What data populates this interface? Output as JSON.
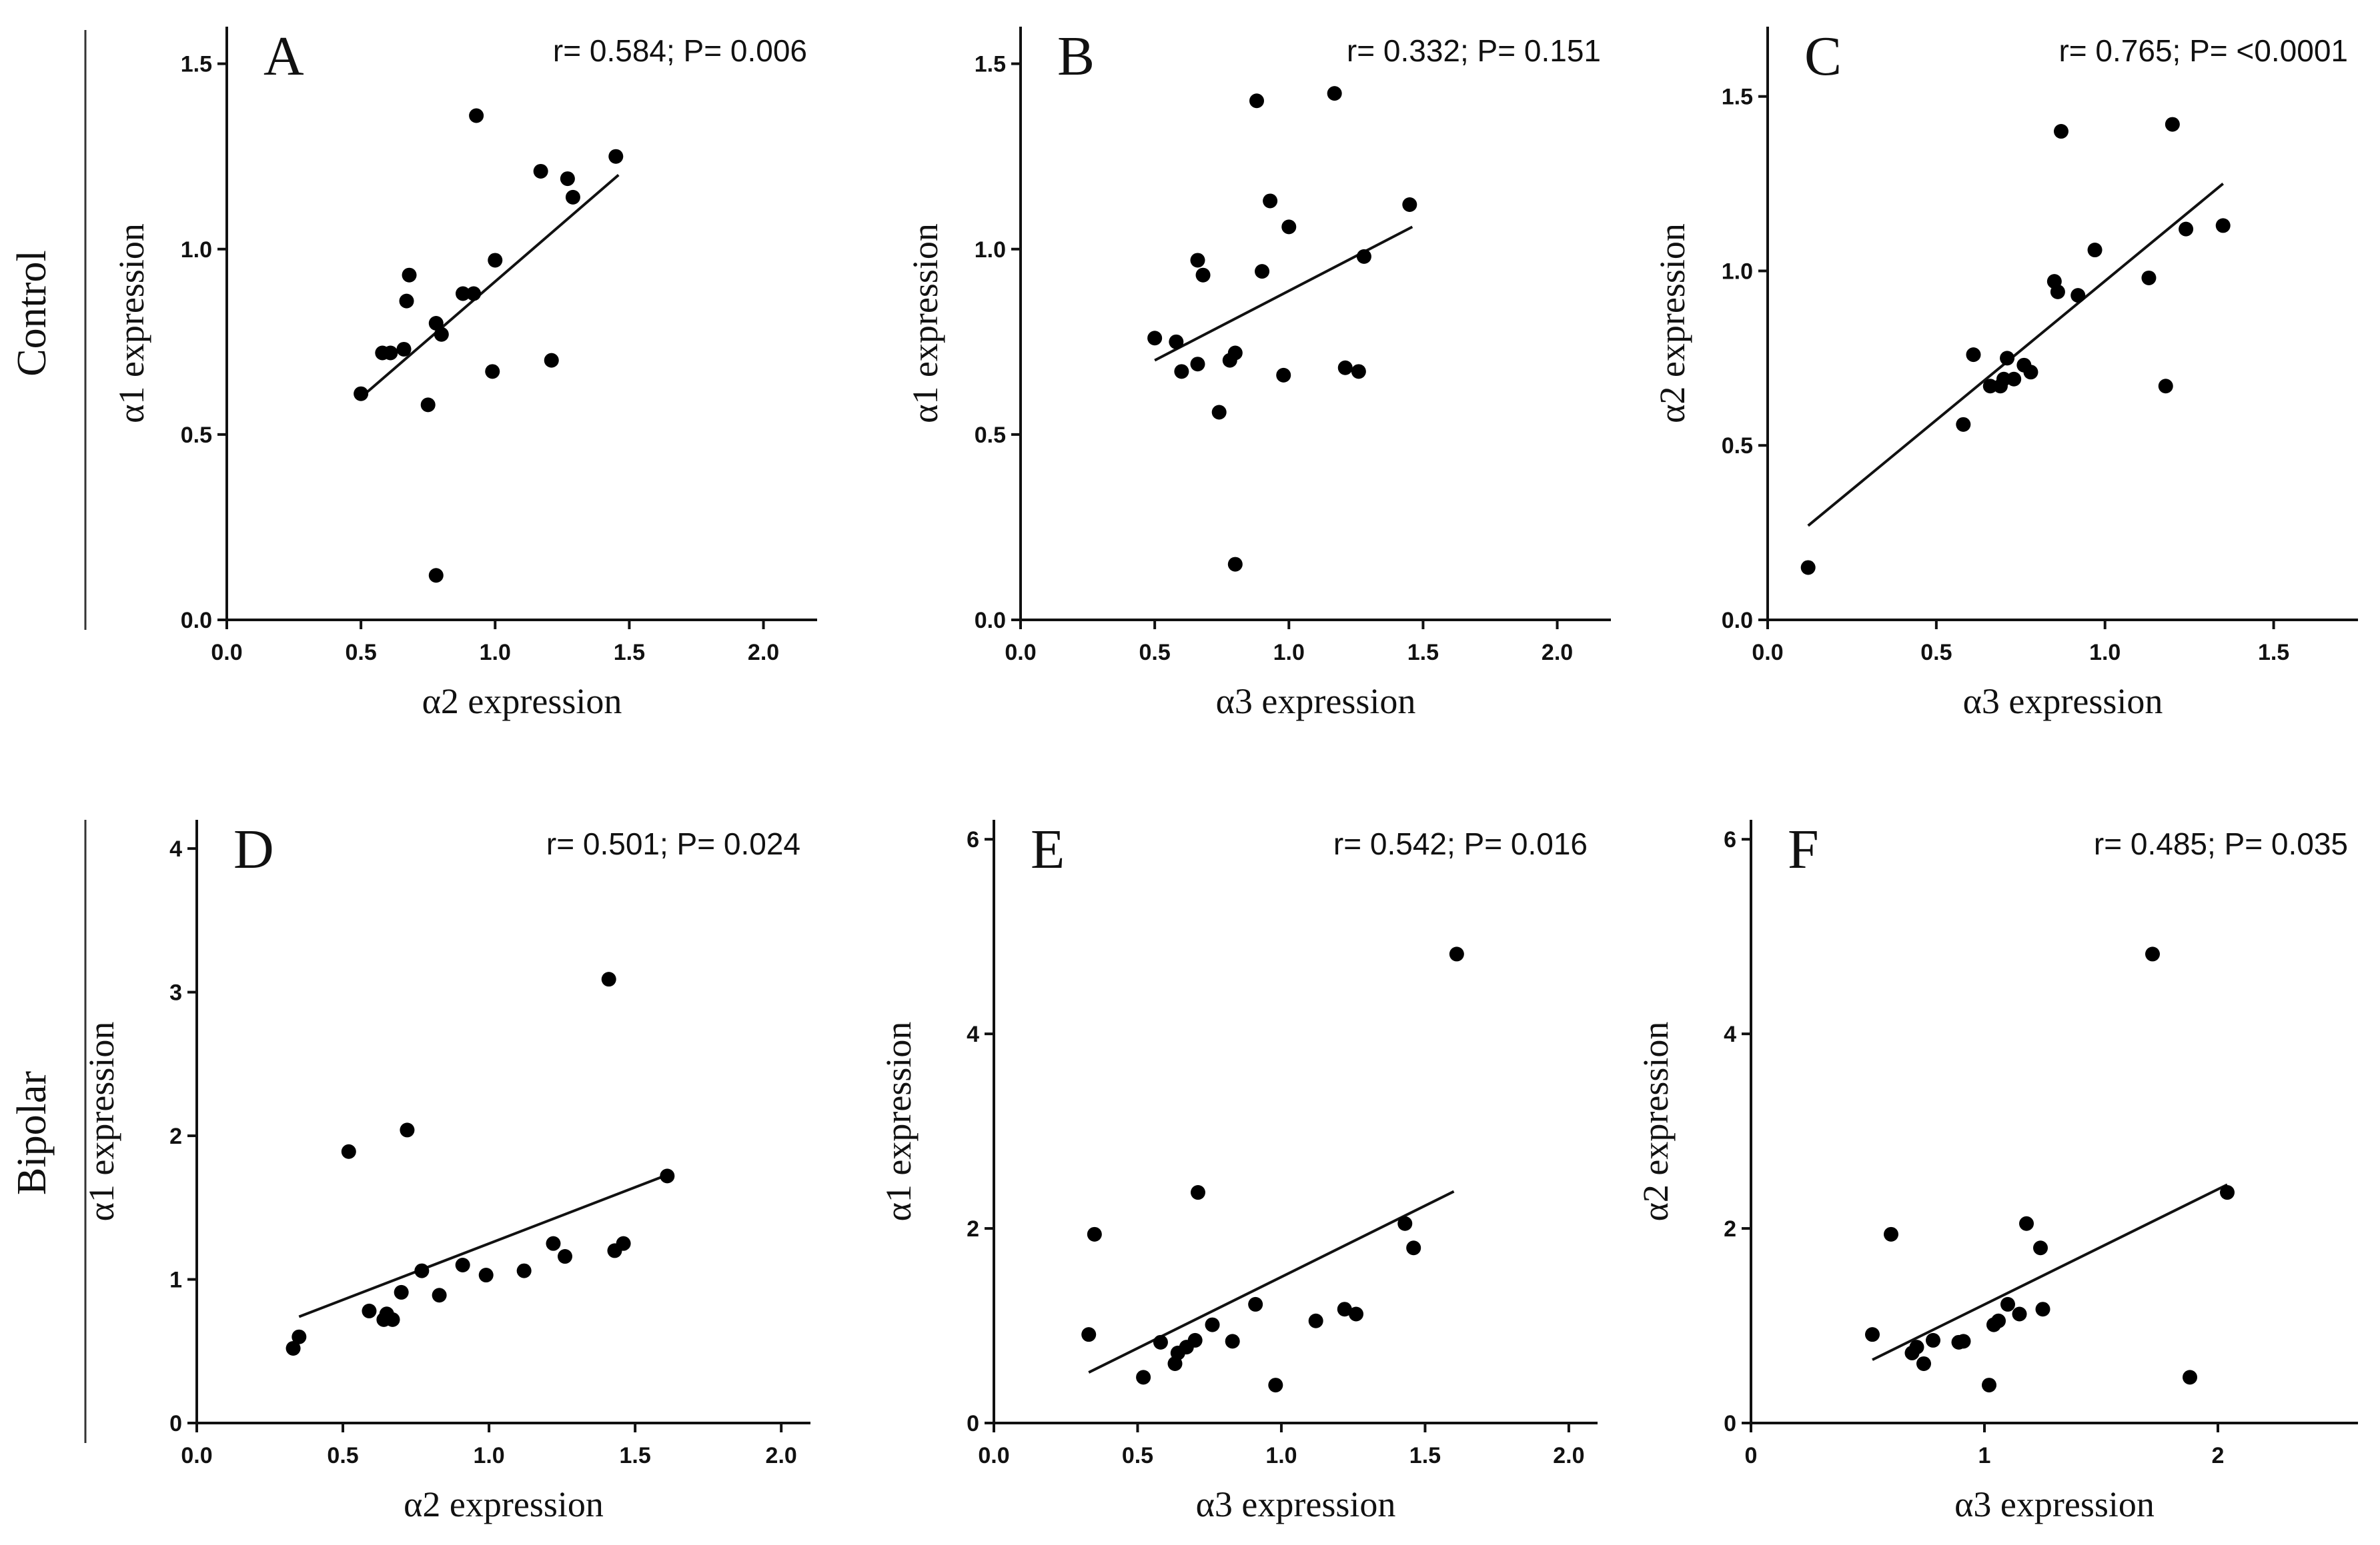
{
  "rows": [
    {
      "label": "Control"
    },
    {
      "label": "Bipolar"
    }
  ],
  "chart_data": [
    {
      "type": "scatter",
      "panel": "A",
      "row": "Control",
      "stat": "r= 0.584; P= 0.006",
      "xlabel": "α2 expression",
      "ylabel": "α1 expression",
      "xlim": [
        0,
        2.2
      ],
      "ylim": [
        0,
        1.6
      ],
      "xticks": [
        "0.0",
        "0.5",
        "1.0",
        "1.5",
        "2.0"
      ],
      "xtick_values": [
        0,
        0.5,
        1.0,
        1.5,
        2.0
      ],
      "yticks": [
        "0.0",
        "0.5",
        "1.0",
        "1.5"
      ],
      "ytick_values": [
        0,
        0.5,
        1.0,
        1.5
      ],
      "fit_line": {
        "x": [
          0.5,
          1.46
        ],
        "y": [
          0.6,
          1.2
        ]
      },
      "x": [
        0.5,
        0.58,
        0.61,
        0.66,
        0.67,
        0.68,
        0.75,
        0.78,
        0.78,
        0.8,
        0.88,
        0.92,
        0.93,
        0.99,
        1.0,
        1.17,
        1.21,
        1.27,
        1.29,
        1.45
      ],
      "y": [
        0.61,
        0.72,
        0.72,
        0.73,
        0.86,
        0.93,
        0.58,
        0.8,
        0.12,
        0.77,
        0.88,
        0.88,
        1.36,
        0.67,
        0.97,
        1.21,
        0.7,
        1.19,
        1.14,
        1.25
      ]
    },
    {
      "type": "scatter",
      "panel": "B",
      "row": "Control",
      "stat": "r= 0.332; P= 0.151",
      "xlabel": "α3 expression",
      "ylabel": "α1 expression",
      "xlim": [
        0,
        2.2
      ],
      "ylim": [
        0,
        1.6
      ],
      "xticks": [
        "0.0",
        "0.5",
        "1.0",
        "1.5",
        "2.0"
      ],
      "xtick_values": [
        0,
        0.5,
        1.0,
        1.5,
        2.0
      ],
      "yticks": [
        "0.0",
        "0.5",
        "1.0",
        "1.5"
      ],
      "ytick_values": [
        0,
        0.5,
        1.0,
        1.5
      ],
      "fit_line": {
        "x": [
          0.5,
          1.46
        ],
        "y": [
          0.7,
          1.06
        ]
      },
      "x": [
        0.5,
        0.58,
        0.6,
        0.66,
        0.66,
        0.68,
        0.74,
        0.78,
        0.8,
        0.8,
        0.88,
        0.9,
        0.93,
        0.98,
        1.0,
        1.17,
        1.21,
        1.26,
        1.28,
        1.45
      ],
      "y": [
        0.76,
        0.75,
        0.67,
        0.97,
        0.69,
        0.93,
        0.56,
        0.7,
        0.72,
        0.15,
        1.4,
        0.94,
        1.13,
        0.66,
        1.06,
        1.42,
        0.68,
        0.67,
        0.98,
        1.12
      ]
    },
    {
      "type": "scatter",
      "panel": "C",
      "row": "Control",
      "stat": "r= 0.765; P= <0.0001",
      "xlabel": "α3 expression",
      "ylabel": "α2 expression",
      "xlim": [
        0,
        1.75
      ],
      "ylim": [
        0,
        1.7
      ],
      "xticks": [
        "0.0",
        "0.5",
        "1.0",
        "1.5"
      ],
      "xtick_values": [
        0,
        0.5,
        1.0,
        1.5
      ],
      "yticks": [
        "0.0",
        "0.5",
        "1.0",
        "1.5"
      ],
      "ytick_values": [
        0,
        0.5,
        1.0,
        1.5
      ],
      "fit_line": {
        "x": [
          0.12,
          1.35
        ],
        "y": [
          0.27,
          1.25
        ]
      },
      "x": [
        0.12,
        0.58,
        0.61,
        0.66,
        0.69,
        0.7,
        0.71,
        0.73,
        0.76,
        0.78,
        0.85,
        0.86,
        0.87,
        0.92,
        0.97,
        1.13,
        1.18,
        1.2,
        1.24,
        1.35
      ],
      "y": [
        0.15,
        0.56,
        0.76,
        0.67,
        0.67,
        0.69,
        0.75,
        0.69,
        0.73,
        0.71,
        0.97,
        0.94,
        1.4,
        0.93,
        1.06,
        0.98,
        0.67,
        1.42,
        1.12,
        1.13
      ]
    },
    {
      "type": "scatter",
      "panel": "D",
      "row": "Bipolar",
      "stat": "r= 0.501; P= 0.024",
      "xlabel": "α2 expression",
      "ylabel": "α1 expression",
      "xlim": [
        0,
        2.1
      ],
      "ylim": [
        0,
        4.2
      ],
      "xticks": [
        "0.0",
        "0.5",
        "1.0",
        "1.5",
        "2.0"
      ],
      "xtick_values": [
        0,
        0.5,
        1.0,
        1.5,
        2.0
      ],
      "yticks": [
        "0",
        "1",
        "2",
        "3",
        "4"
      ],
      "ytick_values": [
        0,
        1,
        2,
        3,
        4
      ],
      "fit_line": {
        "x": [
          0.35,
          1.6
        ],
        "y": [
          0.74,
          1.72
        ]
      },
      "x": [
        0.33,
        0.35,
        0.52,
        0.59,
        0.64,
        0.65,
        0.67,
        0.7,
        0.72,
        0.77,
        0.83,
        0.91,
        0.99,
        1.12,
        1.22,
        1.26,
        1.41,
        1.43,
        1.46,
        1.61
      ],
      "y": [
        0.52,
        0.6,
        1.89,
        0.78,
        0.72,
        0.76,
        0.72,
        0.91,
        2.04,
        1.06,
        0.89,
        1.1,
        1.03,
        1.06,
        1.25,
        1.16,
        3.09,
        1.2,
        1.25,
        1.72
      ]
    },
    {
      "type": "scatter",
      "panel": "E",
      "row": "Bipolar",
      "stat": "r= 0.542; P= 0.016",
      "xlabel": "α3 expression",
      "ylabel": "α1 expression",
      "xlim": [
        0,
        2.1
      ],
      "ylim": [
        0,
        6.2
      ],
      "xticks": [
        "0.0",
        "0.5",
        "1.0",
        "1.5",
        "2.0"
      ],
      "xtick_values": [
        0,
        0.5,
        1.0,
        1.5,
        2.0
      ],
      "yticks": [
        "0",
        "2",
        "4",
        "6"
      ],
      "ytick_values": [
        0,
        2,
        4,
        6
      ],
      "fit_line": {
        "x": [
          0.33,
          1.6
        ],
        "y": [
          0.52,
          2.38
        ]
      },
      "x": [
        0.33,
        0.35,
        0.52,
        0.58,
        0.63,
        0.64,
        0.67,
        0.7,
        0.71,
        0.76,
        0.83,
        0.91,
        0.98,
        1.12,
        1.22,
        1.26,
        1.43,
        1.46,
        1.61
      ],
      "y": [
        0.91,
        1.94,
        0.47,
        0.83,
        0.61,
        0.72,
        0.78,
        0.85,
        2.37,
        1.01,
        0.84,
        1.22,
        0.39,
        1.05,
        1.17,
        1.12,
        2.05,
        1.8,
        4.82
      ]
    },
    {
      "type": "scatter",
      "panel": "F",
      "row": "Bipolar",
      "stat": "r= 0.485; P= 0.035",
      "xlabel": "α3 expression",
      "ylabel": "α2 expression",
      "xlim": [
        0,
        2.6
      ],
      "ylim": [
        0,
        6.2
      ],
      "xticks": [
        "0",
        "1",
        "2"
      ],
      "xtick_values": [
        0,
        1,
        2
      ],
      "yticks": [
        "0",
        "2",
        "4",
        "6"
      ],
      "ytick_values": [
        0,
        2,
        4,
        6
      ],
      "fit_line": {
        "x": [
          0.52,
          2.04
        ],
        "y": [
          0.65,
          2.45
        ]
      },
      "x": [
        0.52,
        0.6,
        0.69,
        0.71,
        0.74,
        0.78,
        0.89,
        0.91,
        1.02,
        1.04,
        1.06,
        1.1,
        1.15,
        1.18,
        1.24,
        1.25,
        1.72,
        1.88,
        2.04
      ],
      "y": [
        0.91,
        1.94,
        0.72,
        0.78,
        0.61,
        0.85,
        0.83,
        0.84,
        0.39,
        1.01,
        1.05,
        1.22,
        1.12,
        2.05,
        1.8,
        1.17,
        4.82,
        0.47,
        2.37
      ]
    }
  ]
}
